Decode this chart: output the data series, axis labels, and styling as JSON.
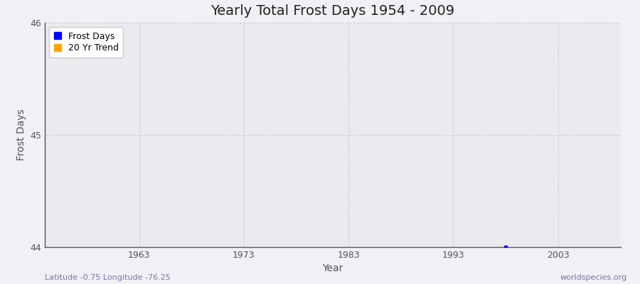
{
  "title": "Yearly Total Frost Days 1954 - 2009",
  "xlabel": "Year",
  "ylabel": "Frost Days",
  "ylim": [
    44,
    46
  ],
  "xlim": [
    1954,
    2009
  ],
  "yticks": [
    44,
    45,
    46
  ],
  "xticks": [
    1963,
    1973,
    1983,
    1993,
    2003
  ],
  "data_x": [
    1998
  ],
  "data_y": [
    44.0
  ],
  "data_color": "#0000ff",
  "trend_color": "#ffa500",
  "fig_bg_color": "#f0f0f5",
  "plot_bg_color": "#eaeaef",
  "grid_color": "#ccccdd",
  "legend_labels": [
    "Frost Days",
    "20 Yr Trend"
  ],
  "legend_colors": [
    "#0000ff",
    "#ffa500"
  ],
  "bottom_left_text": "Latitude -0.75 Longitude -76.25",
  "bottom_right_text": "worldspecies.org",
  "title_fontsize": 14,
  "axis_label_fontsize": 10,
  "tick_fontsize": 9,
  "footnote_fontsize": 8
}
